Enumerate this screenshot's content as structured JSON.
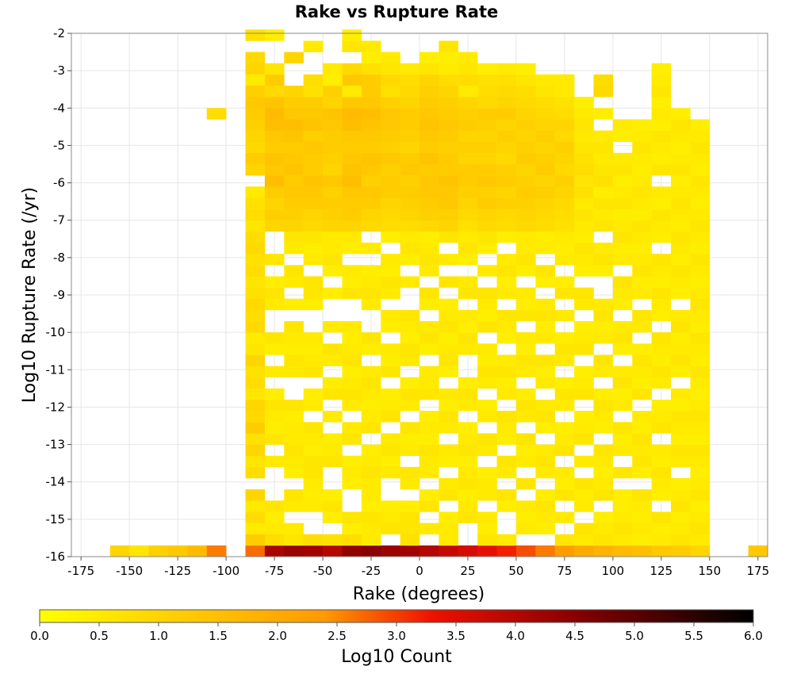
{
  "chart_data": {
    "type": "heatmap",
    "title": "Rake vs Rupture Rate",
    "xlabel": "Rake (degrees)",
    "ylabel": "Log10 Rupture Rate (/yr)",
    "colorbar_label": "Log10 Count",
    "xlim": [
      -180,
      180
    ],
    "ylim": [
      -16,
      -2
    ],
    "x_ticks": [
      "-175",
      "-150",
      "-125",
      "-100",
      "-75",
      "-50",
      "-25",
      "0",
      "25",
      "50",
      "75",
      "100",
      "125",
      "150",
      "175"
    ],
    "y_ticks": [
      "-2",
      "-3",
      "-4",
      "-5",
      "-6",
      "-7",
      "-8",
      "-9",
      "-10",
      "-11",
      "-12",
      "-13",
      "-14",
      "-15",
      "-16"
    ],
    "colorbar_ticks": [
      "0.0",
      "0.5",
      "1.0",
      "1.5",
      "2.0",
      "2.5",
      "3.0",
      "3.5",
      "4.0",
      "4.5",
      "5.0",
      "5.5",
      "6.0"
    ],
    "colorbar_range": [
      0,
      6
    ],
    "grid": true,
    "x_bin_width": 10,
    "y_bin_height": 0.3,
    "colormap": [
      "#ffff00",
      "#ffcc00",
      "#ff9900",
      "#ee1100",
      "#880000",
      "#000000"
    ],
    "column_x_start": -90,
    "column_y_start": -16,
    "column_values": [
      [
        2.7,
        1.2,
        0.5,
        0.8,
        0.5,
        1.0,
        0,
        0.8,
        0.6,
        1.0,
        0.7,
        1.2,
        0.9,
        1.0,
        0.6,
        0.8,
        0.7,
        1.0,
        0.6,
        0.5,
        0.9,
        0.8,
        0.9,
        0.7,
        0.6,
        0.8,
        0.7,
        0.9,
        0.8,
        0.6,
        0.8,
        0.7,
        0.5,
        0,
        1.0,
        1.2,
        0.9,
        1.0,
        1.1,
        1.2,
        1.3,
        1.2,
        1.3,
        1.0,
        0.9,
        0,
        0.7
      ],
      [
        4.1,
        0.8,
        0.5,
        0.4,
        0.6,
        0,
        0,
        0,
        0.5,
        0,
        0.6,
        0.4,
        0.5,
        0.6,
        0.4,
        0,
        0.5,
        0,
        0.4,
        0.6,
        0,
        0,
        0.5,
        0.6,
        0.4,
        0,
        0.6,
        0,
        0,
        1.0,
        1.1,
        1.0,
        1.2,
        1.5,
        1.3,
        1.4,
        1.2,
        1.3,
        1.5,
        1.6,
        1.4,
        1.3,
        1.2,
        0.6,
        0,
        0,
        0.4
      ],
      [
        4.3,
        0.6,
        0.5,
        0,
        0.5,
        0.6,
        0,
        0.4,
        0.5,
        0.6,
        0.5,
        0.5,
        0.4,
        0.6,
        0,
        0,
        0.5,
        0.6,
        0.4,
        0.5,
        0.6,
        0,
        0.4,
        0,
        0.5,
        0.6,
        0,
        0.5,
        0.6,
        1.0,
        1.1,
        1.2,
        1.3,
        1.2,
        1.4,
        1.3,
        1.2,
        1.4,
        1.5,
        1.3,
        1.2,
        0,
        0,
        0,
        1.0
      ],
      [
        4.2,
        0.8,
        0,
        0,
        0.5,
        0.4,
        0.5,
        0.6,
        0.6,
        0.4,
        0.5,
        0.6,
        0,
        0.5,
        0.4,
        0,
        0.6,
        0.5,
        0.4,
        0.5,
        0,
        0,
        0.4,
        0.6,
        0.6,
        0,
        0.5,
        0.4,
        0.6,
        0.9,
        1.0,
        1.2,
        1.3,
        1.4,
        1.2,
        1.2,
        1.3,
        1.1,
        1.4,
        1.3,
        1.2,
        1.3,
        0.8,
        0,
        0,
        0.5
      ],
      [
        4.0,
        0.7,
        0,
        0.4,
        0.6,
        0.4,
        0,
        0,
        0.6,
        0.5,
        0.4,
        0,
        0.5,
        0,
        0.6,
        0.4,
        0,
        0.5,
        0.6,
        0,
        0.5,
        0,
        0,
        0.4,
        0,
        0.4,
        0.6,
        0.5,
        0.5,
        1.0,
        1.1,
        1.2,
        1.1,
        1.3,
        1.0,
        1.1,
        1.2,
        1.2,
        1.3,
        1.4,
        1.0,
        1.1,
        1.0,
        0.5,
        0,
        0
      ],
      [
        4.4,
        0.8,
        0.4,
        0.6,
        0,
        0,
        0.4,
        0.5,
        0.4,
        0,
        0.6,
        0.5,
        0,
        0.5,
        0.6,
        0.5,
        0.4,
        0.6,
        0.5,
        0.4,
        0.5,
        0,
        0,
        0.6,
        0.4,
        0.5,
        0,
        0.4,
        0.5,
        1.0,
        1.2,
        1.2,
        1.3,
        1.5,
        1.4,
        1.3,
        1.2,
        1.3,
        1.5,
        1.6,
        1.3,
        1.4,
        1.3,
        0.9,
        0,
        0.6,
        0.4
      ],
      [
        4.5,
        0.5,
        0.5,
        0.6,
        0.4,
        0.5,
        0.5,
        0.6,
        0.5,
        0.4,
        0,
        0.6,
        0.5,
        0.4,
        0.5,
        0.6,
        0.5,
        0,
        0.4,
        0.6,
        0,
        0,
        0.5,
        0.6,
        0.5,
        0.4,
        0,
        0.5,
        0,
        0.9,
        1.0,
        1.2,
        1.3,
        1.1,
        1.3,
        1.4,
        1.2,
        1.3,
        1.4,
        1.5,
        1.3,
        1.2,
        1.2,
        0.7,
        0.4,
        0.5
      ],
      [
        4.3,
        0,
        0.6,
        0.5,
        0.4,
        0,
        0,
        0.5,
        0.4,
        0.6,
        0.5,
        0,
        0.6,
        0.5,
        0.4,
        0,
        0.6,
        0.4,
        0.5,
        0,
        0.4,
        0.5,
        0,
        0.5,
        0.6,
        0.4,
        0.5,
        0,
        0.4,
        0.8,
        0.9,
        1.0,
        1.2,
        1.2,
        1.1,
        1.3,
        1.1,
        1.2,
        1.3,
        1.3,
        1.1,
        1.0,
        0.9,
        0.6,
        0.5
      ],
      [
        4.2,
        0.7,
        0.6,
        0.6,
        0.4,
        0,
        0.5,
        0.6,
        0,
        0.5,
        0.4,
        0.6,
        0,
        0.5,
        0.6,
        0.4,
        0,
        0.5,
        0.6,
        0.4,
        0.5,
        0.6,
        0,
        0,
        0.5,
        0,
        0.4,
        0.6,
        0.5,
        0.8,
        1.0,
        1.1,
        1.2,
        1.1,
        1.3,
        1.2,
        1.0,
        1.1,
        1.2,
        1.2,
        1.0,
        0.9,
        0.8,
        0.5
      ],
      [
        4.0,
        0,
        0.5,
        0,
        0.6,
        0.4,
        0,
        0.5,
        0.5,
        0.6,
        0.4,
        0.5,
        0.4,
        0,
        0.6,
        0.5,
        0.5,
        0,
        0.4,
        0.6,
        0.5,
        0,
        0.4,
        0.6,
        0,
        0.5,
        0.6,
        0.5,
        0.4,
        0.9,
        1.1,
        1.2,
        1.3,
        1.3,
        1.2,
        1.4,
        1.2,
        1.3,
        1.4,
        1.3,
        1.2,
        1.1,
        1.0,
        0.6,
        0.4
      ],
      [
        3.8,
        0.5,
        0.5,
        0.4,
        0,
        0.6,
        0.5,
        0,
        0.4,
        0.5,
        0,
        0.5,
        0.6,
        0.4,
        0.5,
        0,
        0.4,
        0.6,
        0.5,
        0.4,
        0.6,
        0.5,
        0.4,
        0,
        0.6,
        0,
        0.5,
        0,
        0.6,
        1.0,
        1.1,
        1.3,
        1.3,
        1.4,
        1.2,
        1.2,
        1.1,
        1.2,
        1.3,
        1.2,
        1.1,
        1.0,
        0.8,
        0.5,
        0.4,
        0.6
      ],
      [
        3.6,
        0,
        0,
        0.6,
        0.5,
        0.4,
        0.6,
        0.5,
        0.4,
        0.6,
        0.5,
        0.4,
        0,
        0.5,
        0.6,
        0.4,
        0,
        0,
        0.5,
        0.6,
        0.4,
        0.5,
        0,
        0.6,
        0.5,
        0,
        0.4,
        0.6,
        0.5,
        0.7,
        0.9,
        1.0,
        1.1,
        1.2,
        1.2,
        1.0,
        1.1,
        1.0,
        1.2,
        1.1,
        1.0,
        0.9,
        0.8,
        0.6,
        0.5
      ],
      [
        3.4,
        0.6,
        0.4,
        0.5,
        0,
        0.5,
        0.5,
        0.4,
        0,
        0.5,
        0.6,
        0,
        0.5,
        0.4,
        0,
        0.5,
        0.6,
        0.4,
        0.5,
        0,
        0.6,
        0.4,
        0.5,
        0.6,
        0,
        0.5,
        0,
        0.4,
        0.6,
        0.9,
        1.0,
        1.2,
        1.1,
        1.3,
        1.2,
        1.0,
        1.1,
        1.0,
        1.1,
        1.2,
        0.9,
        0.8,
        0.7,
        0.4
      ],
      [
        3.2,
        0.5,
        0,
        0,
        0.4,
        0.6,
        0,
        0.5,
        0.6,
        0,
        0.4,
        0.5,
        0.6,
        0,
        0.5,
        0.4,
        0.6,
        0.5,
        0,
        0.4,
        0.5,
        0.6,
        0,
        0.5,
        0.4,
        0.6,
        0.5,
        0,
        0.4,
        0.8,
        0.9,
        1.1,
        1.0,
        1.2,
        1.1,
        0.9,
        1.0,
        1.1,
        1.0,
        1.2,
        1.0,
        0.9,
        0.7,
        0.5
      ],
      [
        2.9,
        0,
        0.5,
        0.4,
        0.5,
        0,
        0.6,
        0,
        0.5,
        0.4,
        0.6,
        0,
        0.5,
        0.6,
        0.4,
        0,
        0.5,
        0.6,
        0.4,
        0.5,
        0,
        0.6,
        0.4,
        0.5,
        0,
        0.4,
        0.6,
        0.5,
        0.5,
        0.9,
        1.0,
        1.1,
        1.2,
        1.1,
        1.0,
        1.2,
        1.1,
        1.0,
        1.1,
        1.0,
        0.9,
        0.8,
        0.6,
        0.4
      ],
      [
        2.6,
        0,
        0.4,
        0.5,
        0.6,
        0.4,
        0,
        0.5,
        0.6,
        0.5,
        0,
        0.4,
        0.6,
        0.5,
        0,
        0.5,
        0.4,
        0.6,
        0,
        0.5,
        0.4,
        0.6,
        0.5,
        0,
        0.4,
        0.6,
        0,
        0.5,
        0.4,
        0.8,
        0.9,
        1.0,
        1.1,
        1.0,
        1.2,
        1.1,
        1.0,
        1.1,
        1.0,
        0.9,
        0.8,
        0.6,
        0.5
      ],
      [
        2.3,
        0.6,
        0,
        0.5,
        0,
        0.6,
        0.4,
        0.5,
        0,
        0.6,
        0.5,
        0.4,
        0,
        0.5,
        0.6,
        0.4,
        0,
        0.5,
        0.6,
        0.4,
        0,
        0.5,
        0,
        0.6,
        0.4,
        0,
        0.5,
        0.4,
        0.5,
        0.7,
        0.8,
        0.9,
        1.0,
        1.1,
        0.9,
        1.0,
        1.1,
        0.9,
        1.0,
        0.8,
        0.7,
        0.6,
        0.4
      ],
      [
        2.0,
        0.5,
        0.6,
        0,
        0.5,
        0.4,
        0.6,
        0,
        0.5,
        0,
        0.6,
        0.5,
        0.4,
        0,
        0.6,
        0.5,
        0.4,
        0,
        0.6,
        0.5,
        0.4,
        0,
        0.5,
        0.6,
        0,
        0.4,
        0.5,
        0.6,
        0.4,
        0.5,
        0.6,
        0.5,
        0.7,
        0.6,
        0.8,
        0.7,
        0.6,
        0.5,
        0.6,
        0.5,
        0.4
      ],
      [
        1.8,
        0.6,
        0.5,
        0.4,
        0,
        0.6,
        0.5,
        0.4,
        0.5,
        0.6,
        0,
        0.4,
        0.5,
        0.6,
        0.4,
        0,
        0.5,
        0.6,
        0,
        0.5,
        0.4,
        0.6,
        0.5,
        0,
        0,
        0.4,
        0.6,
        0.5,
        0,
        0.6,
        0.5,
        0.6,
        0.4,
        0.7,
        0.6,
        0.5,
        0.6,
        0.5,
        0,
        0.4
      ],
      [
        1.6,
        0.5,
        0.6,
        0.5,
        0.4,
        0.4,
        0,
        0.6,
        0,
        0.5,
        0.4,
        0.6,
        0,
        0.5,
        0.4,
        0.6,
        0.5,
        0,
        0.4,
        0.6,
        0.5,
        0,
        0.4,
        0.5,
        0.6,
        0,
        0.5,
        0.4,
        0.6,
        0.5,
        0.4,
        0.6,
        0.5,
        0.4,
        0.6,
        0.5,
        0,
        0.4,
        0.5
      ],
      [
        1.5,
        0.4,
        0.5,
        0.4,
        0.5,
        0.6,
        0,
        0.4,
        0.6,
        0.5,
        0.6,
        0.4,
        0.5,
        0,
        0.6,
        0.4,
        0.5,
        0.6,
        0.4,
        0,
        0.5,
        0.6,
        0,
        0.5,
        0.4,
        0.6,
        0.5,
        0.4,
        0.5,
        0.6,
        0.4,
        0.5,
        0.6,
        0.5,
        0.4,
        0.5,
        0.6,
        0.5,
        0.4
      ],
      [
        1.3,
        0.5,
        0.4,
        0.6,
        0,
        0.4,
        0.5,
        0.6,
        0.4,
        0.5,
        0,
        0.6,
        0.5,
        0.4,
        0,
        0.5,
        0.6,
        0.4,
        0.5,
        0.6,
        0,
        0.4,
        0.5,
        0.6,
        0.4,
        0.5,
        0.6,
        0,
        0.4,
        0.5,
        0.6,
        0.4,
        0.5,
        0,
        0.6,
        0.4,
        0.5,
        0.6,
        0.4,
        0.5,
        0.4,
        0.6,
        0.5,
        0.4
      ],
      [
        1.2,
        0.6,
        0.5,
        0.4,
        0.6,
        0.5,
        0.4,
        0,
        0.5,
        0.6,
        0.4,
        0.5,
        0.6,
        0.4,
        0.5,
        0,
        0.4,
        0.6,
        0.5,
        0.4,
        0.6,
        0.5,
        0,
        0.4,
        0.5,
        0.6,
        0.4,
        0.5,
        0.6,
        0.4,
        0.5,
        0.6,
        0.5,
        0.4,
        0.6,
        0.5,
        0.4,
        0.5,
        0.6,
        0.4
      ],
      [
        1.0,
        0.5,
        0.6,
        0.5,
        0.4,
        0.6,
        0.5,
        0.4,
        0.5,
        0.6,
        0.4,
        0.5,
        0.6,
        0.5,
        0.4,
        0.5,
        0.6,
        0.4,
        0.5,
        0.6,
        0.4,
        0.5,
        0.6,
        0.5,
        0.4,
        0.5,
        0.6,
        0.4,
        0.5,
        0.6,
        0.5,
        0.4,
        0.5,
        0.6,
        0.4,
        0.5,
        0.6,
        0.5,
        0.4
      ]
    ],
    "baseline_row": [
      {
        "x": -155,
        "v": 1.0
      },
      {
        "x": -145,
        "v": 0.6
      },
      {
        "x": -135,
        "v": 1.1
      },
      {
        "x": -125,
        "v": 1.3
      },
      {
        "x": -115,
        "v": 1.6
      },
      {
        "x": -105,
        "v": 2.6
      },
      {
        "x": 175,
        "v": 1.3
      }
    ],
    "upper_cells": [
      {
        "x": -105,
        "y": -4.3,
        "v": 0.8
      },
      {
        "x": -85,
        "y": -3.4,
        "v": 0.5
      },
      {
        "x": -85,
        "y": -3.7,
        "v": 1.1
      },
      {
        "x": -75,
        "y": -3.7,
        "v": 0.9
      },
      {
        "x": -65,
        "y": -3.7,
        "v": 1.0
      },
      {
        "x": -55,
        "y": -3.7,
        "v": 0.7
      },
      {
        "x": -45,
        "y": -3.4,
        "v": 0.4
      },
      {
        "x": -35,
        "y": -3.7,
        "v": 0.5
      },
      {
        "x": -15,
        "y": -3.7,
        "v": 0.7
      },
      {
        "x": 25,
        "y": -3.7,
        "v": 0.5
      },
      {
        "x": 75,
        "y": -3.4,
        "v": 0.5
      },
      {
        "x": 75,
        "y": -3.7,
        "v": 0.5
      },
      {
        "x": 95,
        "y": -3.4,
        "v": 0.8
      },
      {
        "x": 95,
        "y": -3.7,
        "v": 0.9
      }
    ]
  }
}
